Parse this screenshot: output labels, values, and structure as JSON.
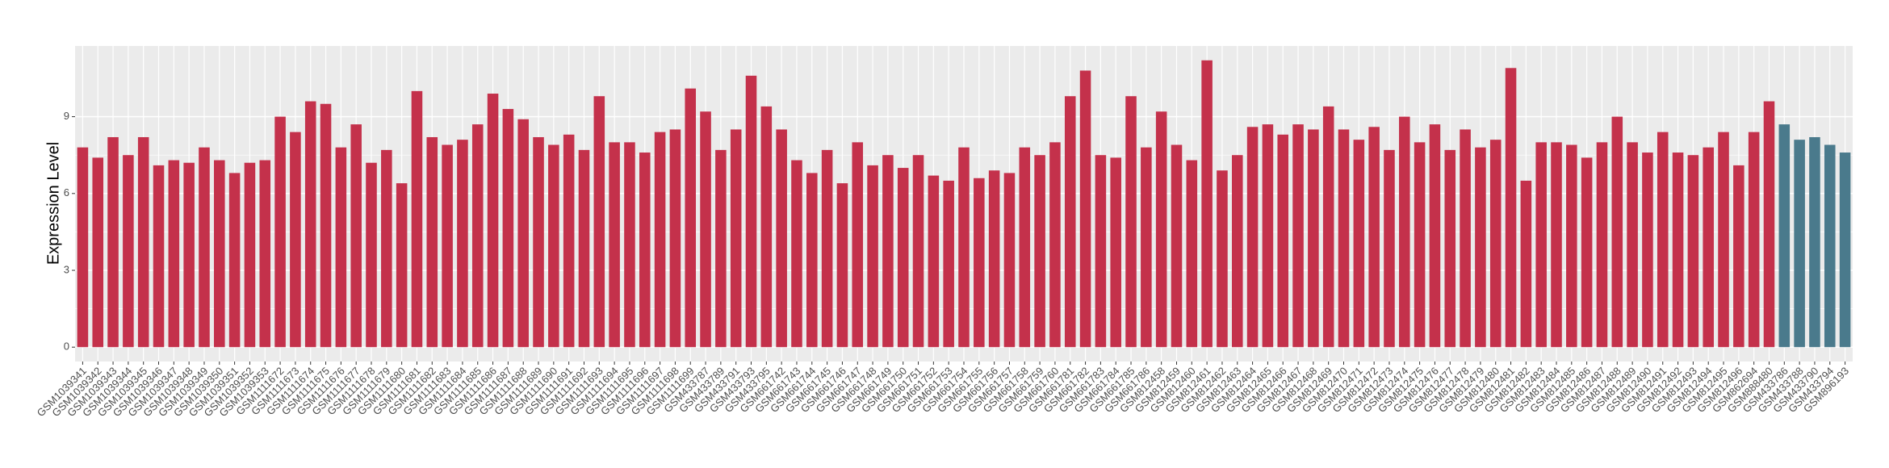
{
  "chart_data": {
    "type": "bar",
    "y_label": "Expression Level",
    "categories": [
      "GSM1039341",
      "GSM1039342",
      "GSM1039343",
      "GSM1039344",
      "GSM1039345",
      "GSM1039346",
      "GSM1039347",
      "GSM1039348",
      "GSM1039349",
      "GSM1039350",
      "GSM1039351",
      "GSM1039352",
      "GSM1039353",
      "GSM1111672",
      "GSM1111673",
      "GSM1111674",
      "GSM1111675",
      "GSM1111676",
      "GSM1111677",
      "GSM1111678",
      "GSM1111679",
      "GSM1111680",
      "GSM1111681",
      "GSM1111682",
      "GSM1111683",
      "GSM1111684",
      "GSM1111685",
      "GSM1111686",
      "GSM1111687",
      "GSM1111688",
      "GSM1111689",
      "GSM1111690",
      "GSM1111691",
      "GSM1111692",
      "GSM1111693",
      "GSM1111694",
      "GSM1111695",
      "GSM1111696",
      "GSM1111697",
      "GSM1111698",
      "GSM1111699",
      "GSM433787",
      "GSM433789",
      "GSM433791",
      "GSM433793",
      "GSM433795",
      "GSM661742",
      "GSM661743",
      "GSM661744",
      "GSM661745",
      "GSM661746",
      "GSM661747",
      "GSM661748",
      "GSM661749",
      "GSM661750",
      "GSM661751",
      "GSM661752",
      "GSM661753",
      "GSM661754",
      "GSM661755",
      "GSM661756",
      "GSM661757",
      "GSM661758",
      "GSM661759",
      "GSM661760",
      "GSM661781",
      "GSM661782",
      "GSM661783",
      "GSM661784",
      "GSM661785",
      "GSM661786",
      "GSM812458",
      "GSM812459",
      "GSM812460",
      "GSM812461",
      "GSM812462",
      "GSM812463",
      "GSM812464",
      "GSM812465",
      "GSM812466",
      "GSM812467",
      "GSM812468",
      "GSM812469",
      "GSM812470",
      "GSM812471",
      "GSM812472",
      "GSM812473",
      "GSM812474",
      "GSM812475",
      "GSM812476",
      "GSM812477",
      "GSM812478",
      "GSM812479",
      "GSM812480",
      "GSM812481",
      "GSM812482",
      "GSM812483",
      "GSM812484",
      "GSM812485",
      "GSM812486",
      "GSM812487",
      "GSM812488",
      "GSM812489",
      "GSM812490",
      "GSM812491",
      "GSM812492",
      "GSM812493",
      "GSM812494",
      "GSM812495",
      "GSM812496",
      "GSM862694",
      "GSM888480",
      "GSM433786",
      "GSM433788",
      "GSM433790",
      "GSM433794",
      "GSM896193"
    ],
    "values": [
      7.8,
      7.4,
      8.2,
      7.5,
      8.2,
      7.1,
      7.3,
      7.2,
      7.8,
      7.3,
      6.8,
      7.2,
      7.3,
      9.0,
      8.4,
      9.6,
      9.5,
      7.8,
      8.7,
      7.2,
      7.7,
      6.4,
      10.0,
      8.2,
      7.9,
      8.1,
      8.7,
      9.9,
      9.3,
      8.9,
      8.2,
      7.9,
      8.3,
      7.7,
      9.8,
      8.0,
      8.0,
      7.6,
      8.4,
      8.5,
      10.1,
      9.2,
      7.7,
      8.5,
      10.6,
      9.4,
      8.5,
      7.3,
      6.8,
      7.7,
      6.4,
      8.0,
      7.1,
      7.5,
      7.0,
      7.5,
      6.7,
      6.5,
      7.8,
      6.6,
      6.9,
      6.8,
      7.8,
      7.5,
      8.0,
      9.8,
      10.8,
      7.5,
      7.4,
      9.8,
      7.8,
      9.2,
      7.9,
      7.3,
      11.2,
      6.9,
      7.5,
      8.6,
      8.7,
      8.3,
      8.7,
      8.5,
      9.4,
      8.5,
      8.1,
      8.6,
      7.7,
      9.0,
      8.0,
      8.7,
      7.7,
      8.5,
      7.8,
      8.1,
      10.9,
      6.5,
      8.0,
      8.0,
      7.9,
      7.4,
      8.0,
      9.0,
      8.0,
      7.6,
      8.4,
      7.6,
      7.5,
      7.8,
      8.4,
      7.1,
      8.4,
      9.6,
      8.7,
      8.1,
      8.2,
      7.9,
      7.6
    ],
    "bar_colors": [
      "#c4314b",
      "#c4314b",
      "#c4314b",
      "#c4314b",
      "#c4314b",
      "#c4314b",
      "#c4314b",
      "#c4314b",
      "#c4314b",
      "#c4314b",
      "#c4314b",
      "#c4314b",
      "#c4314b",
      "#c4314b",
      "#c4314b",
      "#c4314b",
      "#c4314b",
      "#c4314b",
      "#c4314b",
      "#c4314b",
      "#c4314b",
      "#c4314b",
      "#c4314b",
      "#c4314b",
      "#c4314b",
      "#c4314b",
      "#c4314b",
      "#c4314b",
      "#c4314b",
      "#c4314b",
      "#c4314b",
      "#c4314b",
      "#c4314b",
      "#c4314b",
      "#c4314b",
      "#c4314b",
      "#c4314b",
      "#c4314b",
      "#c4314b",
      "#c4314b",
      "#c4314b",
      "#c4314b",
      "#c4314b",
      "#c4314b",
      "#c4314b",
      "#c4314b",
      "#c4314b",
      "#c4314b",
      "#c4314b",
      "#c4314b",
      "#c4314b",
      "#c4314b",
      "#c4314b",
      "#c4314b",
      "#c4314b",
      "#c4314b",
      "#c4314b",
      "#c4314b",
      "#c4314b",
      "#c4314b",
      "#c4314b",
      "#c4314b",
      "#c4314b",
      "#c4314b",
      "#c4314b",
      "#c4314b",
      "#c4314b",
      "#c4314b",
      "#c4314b",
      "#c4314b",
      "#c4314b",
      "#c4314b",
      "#c4314b",
      "#c4314b",
      "#c4314b",
      "#c4314b",
      "#c4314b",
      "#c4314b",
      "#c4314b",
      "#c4314b",
      "#c4314b",
      "#c4314b",
      "#c4314b",
      "#c4314b",
      "#c4314b",
      "#c4314b",
      "#c4314b",
      "#c4314b",
      "#c4314b",
      "#c4314b",
      "#c4314b",
      "#c4314b",
      "#c4314b",
      "#c4314b",
      "#c4314b",
      "#c4314b",
      "#c4314b",
      "#c4314b",
      "#c4314b",
      "#c4314b",
      "#c4314b",
      "#c4314b",
      "#c4314b",
      "#c4314b",
      "#c4314b",
      "#c4314b",
      "#c4314b",
      "#c4314b",
      "#c4314b",
      "#c4314b",
      "#c4314b",
      "#c4314b",
      "#4a7a8c",
      "#4a7a8c",
      "#4a7a8c",
      "#4a7a8c",
      "#4a7a8c"
    ],
    "ylim": [
      -0.56,
      11.76
    ],
    "yticks": [
      0,
      3,
      6,
      9
    ],
    "grid": true
  }
}
